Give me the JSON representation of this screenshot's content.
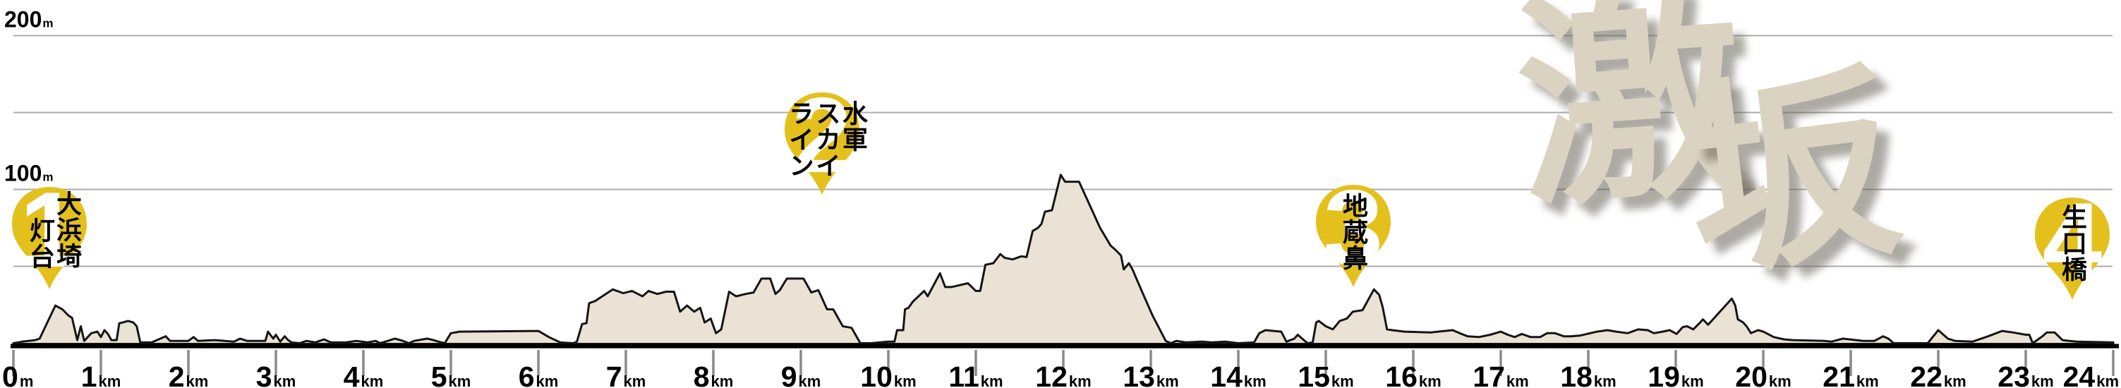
{
  "title": {
    "text": "激坂",
    "chars": [
      "激",
      "坂"
    ]
  },
  "y_axis": {
    "labels": [
      {
        "value": "200",
        "unit": "m",
        "elevation_m": 200
      },
      {
        "value": "100",
        "unit": "m",
        "elevation_m": 100
      }
    ]
  },
  "x_axis": {
    "ticks": [
      {
        "value": "0",
        "unit": "m",
        "km": 0
      },
      {
        "value": "1",
        "unit": "km",
        "km": 1
      },
      {
        "value": "2",
        "unit": "km",
        "km": 2
      },
      {
        "value": "3",
        "unit": "km",
        "km": 3
      },
      {
        "value": "4",
        "unit": "km",
        "km": 4
      },
      {
        "value": "5",
        "unit": "km",
        "km": 5
      },
      {
        "value": "6",
        "unit": "km",
        "km": 6
      },
      {
        "value": "7",
        "unit": "km",
        "km": 7
      },
      {
        "value": "8",
        "unit": "km",
        "km": 8
      },
      {
        "value": "9",
        "unit": "km",
        "km": 9
      },
      {
        "value": "10",
        "unit": "km",
        "km": 10
      },
      {
        "value": "11",
        "unit": "km",
        "km": 11
      },
      {
        "value": "12",
        "unit": "km",
        "km": 12
      },
      {
        "value": "13",
        "unit": "km",
        "km": 13
      },
      {
        "value": "14",
        "unit": "km",
        "km": 14
      },
      {
        "value": "15",
        "unit": "km",
        "km": 15
      },
      {
        "value": "16",
        "unit": "km",
        "km": 16
      },
      {
        "value": "17",
        "unit": "km",
        "km": 17
      },
      {
        "value": "18",
        "unit": "km",
        "km": 18
      },
      {
        "value": "19",
        "unit": "km",
        "km": 19
      },
      {
        "value": "20",
        "unit": "km",
        "km": 20
      },
      {
        "value": "21",
        "unit": "km",
        "km": 21
      },
      {
        "value": "22",
        "unit": "km",
        "km": 22
      },
      {
        "value": "23",
        "unit": "km",
        "km": 23
      },
      {
        "value": "24",
        "unit": "km",
        "km": 24
      }
    ]
  },
  "markers": [
    {
      "number": "1",
      "name": "大浜埼灯台",
      "columns": [
        "大浜埼",
        "灯台"
      ],
      "km": 0.4
    },
    {
      "number": "2",
      "name": "水軍スカイライン",
      "columns": [
        "水軍",
        "スカイ",
        "ライン"
      ],
      "km": 9.2
    },
    {
      "number": "3",
      "name": "地蔵鼻",
      "columns": [
        "地蔵鼻"
      ],
      "km": 15.3
    },
    {
      "number": "4",
      "name": "生口橋",
      "columns": [
        "生口橋"
      ],
      "km": 23.5
    }
  ],
  "colors": {
    "marker_yellow": "#e4c01d",
    "profile_fill": "#eae3d5",
    "profile_stroke": "#151515",
    "gridline": "#acacac",
    "tick": "#8a8a8a",
    "axis": "#000000",
    "calligraphy": "#dbd3c1"
  },
  "chart_data": {
    "type": "area",
    "title": "激坂",
    "xlabel": "distance",
    "ylabel": "elevation",
    "x_unit": "km",
    "y_unit": "m",
    "xlim": [
      0,
      24
    ],
    "ylim": [
      0,
      200
    ],
    "grid": true,
    "gridlines_m": [
      50,
      100,
      150,
      200
    ],
    "profile": [
      [
        0,
        0
      ],
      [
        0.1,
        1
      ],
      [
        0.25,
        2
      ],
      [
        0.3,
        3
      ],
      [
        0.48,
        24.5
      ],
      [
        0.56,
        22
      ],
      [
        0.63,
        18
      ],
      [
        0.67,
        16.5
      ],
      [
        0.73,
        2
      ],
      [
        0.77,
        11
      ],
      [
        0.81,
        1.5
      ],
      [
        0.89,
        6.5
      ],
      [
        0.96,
        7.5
      ],
      [
        1,
        4
      ],
      [
        1.04,
        8.5
      ],
      [
        1.08,
        6
      ],
      [
        1.12,
        2
      ],
      [
        1.18,
        2
      ],
      [
        1.21,
        13
      ],
      [
        1.25,
        13.5
      ],
      [
        1.31,
        14.5
      ],
      [
        1.37,
        13.5
      ],
      [
        1.41,
        11
      ],
      [
        1.45,
        0.5
      ],
      [
        1.58,
        0.5
      ],
      [
        1.74,
        4.5
      ],
      [
        1.79,
        1.5
      ],
      [
        2,
        1.5
      ],
      [
        2.06,
        4
      ],
      [
        2.11,
        1.5
      ],
      [
        2.3,
        2
      ],
      [
        2.52,
        1
      ],
      [
        2.59,
        3
      ],
      [
        2.67,
        1.5
      ],
      [
        2.88,
        1.5
      ],
      [
        2.91,
        7.5
      ],
      [
        2.97,
        3
      ],
      [
        3,
        5.5
      ],
      [
        3.05,
        1
      ],
      [
        3.1,
        4.5
      ],
      [
        3.14,
        2
      ],
      [
        3.18,
        0.5
      ],
      [
        3.27,
        0
      ],
      [
        3.35,
        1.5
      ],
      [
        3.45,
        0.5
      ],
      [
        3.55,
        2.5
      ],
      [
        3.63,
        0.5
      ],
      [
        3.8,
        0.5
      ],
      [
        3.92,
        1.5
      ],
      [
        4.05,
        0.5
      ],
      [
        4.14,
        1.5
      ],
      [
        4.19,
        0
      ],
      [
        4.28,
        1.5
      ],
      [
        4.36,
        3
      ],
      [
        4.45,
        1.5
      ],
      [
        4.52,
        0
      ],
      [
        4.58,
        1.5
      ],
      [
        4.73,
        3
      ],
      [
        4.8,
        2
      ],
      [
        4.86,
        1
      ],
      [
        4.93,
        0
      ],
      [
        5,
        6.5
      ],
      [
        5.1,
        7.5
      ],
      [
        6,
        8
      ],
      [
        6.12,
        4
      ],
      [
        6.25,
        0.5
      ],
      [
        6.4,
        0
      ],
      [
        6.44,
        1
      ],
      [
        6.5,
        12.5
      ],
      [
        6.55,
        13
      ],
      [
        6.58,
        26
      ],
      [
        6.65,
        27.5
      ],
      [
        6.85,
        35
      ],
      [
        6.97,
        32.5
      ],
      [
        7.07,
        34
      ],
      [
        7.19,
        30.5
      ],
      [
        7.26,
        34
      ],
      [
        7.36,
        32
      ],
      [
        7.46,
        33.5
      ],
      [
        7.55,
        33.5
      ],
      [
        7.62,
        20.5
      ],
      [
        7.7,
        24.5
      ],
      [
        7.78,
        20.5
      ],
      [
        7.85,
        23
      ],
      [
        7.9,
        13.5
      ],
      [
        7.97,
        16
      ],
      [
        8.03,
        6.5
      ],
      [
        8.09,
        9
      ],
      [
        8.18,
        33.5
      ],
      [
        8.26,
        30.5
      ],
      [
        8.37,
        32
      ],
      [
        8.46,
        33
      ],
      [
        8.55,
        42
      ],
      [
        8.65,
        42
      ],
      [
        8.71,
        32
      ],
      [
        8.76,
        34.5
      ],
      [
        8.84,
        42
      ],
      [
        9.03,
        42
      ],
      [
        9.12,
        33
      ],
      [
        9.2,
        34.5
      ],
      [
        9.3,
        22
      ],
      [
        9.37,
        22
      ],
      [
        9.48,
        11
      ],
      [
        9.58,
        10
      ],
      [
        9.68,
        0
      ],
      [
        9.8,
        0
      ],
      [
        10,
        1
      ],
      [
        10.07,
        1
      ],
      [
        10.1,
        8.5
      ],
      [
        10.17,
        8.5
      ],
      [
        10.19,
        22
      ],
      [
        10.23,
        23
      ],
      [
        10.28,
        27
      ],
      [
        10.41,
        34
      ],
      [
        10.45,
        30.5
      ],
      [
        10.59,
        45.5
      ],
      [
        10.65,
        36.5
      ],
      [
        10.72,
        36.5
      ],
      [
        10.91,
        39
      ],
      [
        11,
        34
      ],
      [
        11.05,
        34
      ],
      [
        11.11,
        51
      ],
      [
        11.2,
        52
      ],
      [
        11.28,
        58
      ],
      [
        11.33,
        55.5
      ],
      [
        11.42,
        54.5
      ],
      [
        11.52,
        56.5
      ],
      [
        11.58,
        56
      ],
      [
        11.65,
        73
      ],
      [
        11.71,
        75
      ],
      [
        11.75,
        77.5
      ],
      [
        11.79,
        85.5
      ],
      [
        11.87,
        86.5
      ],
      [
        11.97,
        109.5
      ],
      [
        12.02,
        105
      ],
      [
        12.18,
        105
      ],
      [
        12.42,
        75
      ],
      [
        12.54,
        63.5
      ],
      [
        12.59,
        61
      ],
      [
        12.66,
        57
      ],
      [
        12.69,
        48
      ],
      [
        12.75,
        52
      ],
      [
        12.79,
        48
      ],
      [
        12.9,
        33.5
      ],
      [
        13.02,
        18
      ],
      [
        13.17,
        1.5
      ],
      [
        13.23,
        0
      ],
      [
        13.29,
        1.5
      ],
      [
        13.4,
        0.5
      ],
      [
        13.58,
        1
      ],
      [
        13.7,
        0.5
      ],
      [
        13.85,
        1
      ],
      [
        14,
        0
      ],
      [
        14.18,
        0.5
      ],
      [
        14.24,
        6.5
      ],
      [
        14.31,
        8.5
      ],
      [
        14.49,
        7.5
      ],
      [
        14.55,
        1
      ],
      [
        14.64,
        3
      ],
      [
        14.68,
        5.5
      ],
      [
        14.73,
        3
      ],
      [
        14.79,
        0
      ],
      [
        14.85,
        0.5
      ],
      [
        14.89,
        13.5
      ],
      [
        14.92,
        14.5
      ],
      [
        15,
        11
      ],
      [
        15.08,
        9
      ],
      [
        15.16,
        14.5
      ],
      [
        15.24,
        16
      ],
      [
        15.31,
        20.5
      ],
      [
        15.42,
        21.5
      ],
      [
        15.55,
        35
      ],
      [
        15.61,
        31.5
      ],
      [
        15.65,
        23.5
      ],
      [
        15.7,
        9
      ],
      [
        15.76,
        8.5
      ],
      [
        15.9,
        7.5
      ],
      [
        16.2,
        7
      ],
      [
        16.45,
        8.5
      ],
      [
        16.53,
        6.5
      ],
      [
        16.62,
        4.5
      ],
      [
        16.75,
        4
      ],
      [
        16.88,
        5.5
      ],
      [
        17,
        7.5
      ],
      [
        17.08,
        5.5
      ],
      [
        17.16,
        4
      ],
      [
        17.24,
        6
      ],
      [
        17.34,
        4
      ],
      [
        17.45,
        4
      ],
      [
        17.53,
        6.5
      ],
      [
        17.62,
        6.5
      ],
      [
        17.72,
        4.5
      ],
      [
        17.8,
        4.5
      ],
      [
        17.91,
        5
      ],
      [
        18.1,
        7.5
      ],
      [
        18.22,
        8.5
      ],
      [
        18.32,
        7.5
      ],
      [
        18.45,
        6.5
      ],
      [
        18.57,
        9
      ],
      [
        18.68,
        8.5
      ],
      [
        18.75,
        6.5
      ],
      [
        18.85,
        7.5
      ],
      [
        18.93,
        8.5
      ],
      [
        19.01,
        6
      ],
      [
        19.08,
        10.5
      ],
      [
        19.13,
        11
      ],
      [
        19.2,
        9
      ],
      [
        19.27,
        13
      ],
      [
        19.31,
        15.5
      ],
      [
        19.37,
        12
      ],
      [
        19.64,
        29
      ],
      [
        19.68,
        24.5
      ],
      [
        19.71,
        15.5
      ],
      [
        19.77,
        13.5
      ],
      [
        19.81,
        11
      ],
      [
        19.86,
        6.5
      ],
      [
        19.94,
        8.5
      ],
      [
        20,
        7.5
      ],
      [
        20.12,
        4
      ],
      [
        20.24,
        2.5
      ],
      [
        20.34,
        2
      ],
      [
        20.7,
        1.5
      ],
      [
        20.78,
        1
      ],
      [
        20.91,
        3
      ],
      [
        20.99,
        2.5
      ],
      [
        21.14,
        1.5
      ],
      [
        21.27,
        1.5
      ],
      [
        21.37,
        4.5
      ],
      [
        21.43,
        3
      ],
      [
        21.49,
        0
      ],
      [
        21.7,
        0
      ],
      [
        21.88,
        0
      ],
      [
        22,
        8.5
      ],
      [
        22.11,
        3
      ],
      [
        22.19,
        1.5
      ],
      [
        22.39,
        1
      ],
      [
        22.57,
        4.5
      ],
      [
        22.73,
        8
      ],
      [
        22.85,
        7
      ],
      [
        23,
        5.5
      ],
      [
        23.04,
        5.5
      ],
      [
        23.08,
        0
      ],
      [
        23.19,
        4.5
      ],
      [
        23.24,
        7
      ],
      [
        23.33,
        7
      ],
      [
        23.42,
        2
      ],
      [
        23.5,
        1.5
      ],
      [
        23.58,
        1
      ],
      [
        24,
        0.5
      ]
    ],
    "marker_points": [
      {
        "label": "大浜埼灯台",
        "km": 0.4
      },
      {
        "label": "水軍スカイライン",
        "km": 9.2
      },
      {
        "label": "地蔵鼻",
        "km": 15.3
      },
      {
        "label": "生口橋",
        "km": 23.5
      }
    ]
  }
}
